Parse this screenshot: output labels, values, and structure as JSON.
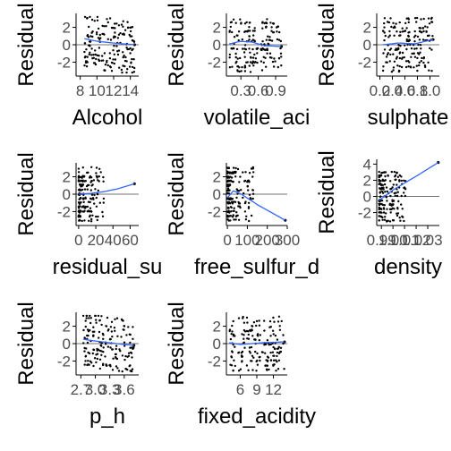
{
  "chart_data": [
    {
      "type": "scatter",
      "title": "",
      "xlabel": "Alcohol",
      "ylabel": "Residual",
      "xlim": [
        7.5,
        15
      ],
      "ylim": [
        -3.6,
        3.6
      ],
      "xticks": [
        8,
        10,
        12,
        14
      ],
      "xtick_labels": [
        "8",
        "10",
        "12",
        "14"
      ],
      "yticks": [
        -2,
        0,
        2
      ],
      "ytick_labels": [
        "-2",
        "0",
        "2"
      ],
      "points_summary": "many points in diagonal bands, y from -3.2 to 3.0, x from 8.5 to 14.5",
      "smooth_line": {
        "x": [
          8.5,
          10,
          12,
          14.5
        ],
        "y": [
          0.7,
          0.4,
          0.2,
          0.0
        ]
      }
    },
    {
      "type": "scatter",
      "title": "",
      "xlabel": "volatile_aci",
      "ylabel": "Residual",
      "xlim": [
        0.05,
        1.1
      ],
      "ylim": [
        -3.6,
        3.6
      ],
      "xticks": [
        0.3,
        0.6,
        0.9
      ],
      "xtick_labels": [
        "0.3",
        "0.6",
        "0.9"
      ],
      "yticks": [
        -2,
        0,
        2
      ],
      "ytick_labels": [
        "-2",
        "0",
        "2"
      ],
      "points_summary": "dense cloud at x 0.1-0.6, sparse to 1.0",
      "smooth_line": {
        "x": [
          0.1,
          0.3,
          0.5,
          0.7,
          1.0
        ],
        "y": [
          0.1,
          0.4,
          0.3,
          -0.1,
          -0.2
        ]
      }
    },
    {
      "type": "scatter",
      "title": "",
      "xlabel": "sulphate",
      "ylabel": "Residual",
      "xlim": [
        0.15,
        1.15
      ],
      "ylim": [
        -3.6,
        3.6
      ],
      "xticks": [
        0.2,
        0.4,
        0.6,
        0.8,
        1.0
      ],
      "xtick_labels": [
        "0.2",
        "0.4",
        "0.6",
        "0.8",
        "1.0"
      ],
      "yticks": [
        -2,
        0,
        2
      ],
      "ytick_labels": [
        "-2",
        "0",
        "2"
      ],
      "points_summary": "horizontal bands across x 0.25-1.05",
      "smooth_line": {
        "x": [
          0.25,
          0.5,
          0.75,
          1.05
        ],
        "y": [
          0.0,
          0.2,
          0.1,
          0.6
        ]
      }
    },
    {
      "type": "scatter",
      "title": "",
      "xlabel": "residual_su",
      "ylabel": "Residual",
      "xlim": [
        -3,
        70
      ],
      "ylim": [
        -3.6,
        3.6
      ],
      "xticks": [
        0,
        20,
        40,
        60
      ],
      "xtick_labels": [
        "0",
        "20",
        "40",
        "60"
      ],
      "yticks": [
        -2,
        0,
        2
      ],
      "ytick_labels": [
        "-2",
        "0",
        "2"
      ],
      "points_summary": "dense at x 0-20, single point near x 65",
      "smooth_line": {
        "x": [
          0,
          15,
          30,
          45,
          65
        ],
        "y": [
          0.0,
          0.1,
          0.3,
          0.6,
          1.2
        ]
      }
    },
    {
      "type": "scatter",
      "title": "",
      "xlabel": "free_sulfur_d",
      "ylabel": "Residual",
      "xlim": [
        -5,
        300
      ],
      "ylim": [
        -3.6,
        3.6
      ],
      "xticks": [
        0,
        100,
        200,
        300
      ],
      "xtick_labels": [
        "0",
        "100",
        "200",
        "300"
      ],
      "yticks": [
        -2,
        0,
        2
      ],
      "ytick_labels": [
        "-2",
        "0",
        "2"
      ],
      "points_summary": "dense at x 0-80",
      "smooth_line": {
        "x": [
          0,
          30,
          70,
          150,
          290
        ],
        "y": [
          -0.4,
          0.4,
          0.0,
          -1.2,
          -3.0
        ]
      }
    },
    {
      "type": "scatter",
      "title": "",
      "xlabel": "density",
      "ylabel": "Residual",
      "xlim": [
        0.986,
        1.04
      ],
      "ylim": [
        -3.6,
        4.6
      ],
      "xticks": [
        0.99,
        1.0,
        1.01,
        1.02,
        1.03
      ],
      "xtick_labels": [
        "0.99",
        "1.00",
        "1.01",
        "1.02",
        "1.03"
      ],
      "yticks": [
        -2,
        0,
        2,
        4
      ],
      "ytick_labels": [
        "-2",
        "0",
        "2",
        "4"
      ],
      "points_summary": "dense at x 0.99-1.00, single point near x 1.04",
      "smooth_line": {
        "x": [
          0.988,
          1.0,
          1.02,
          1.039
        ],
        "y": [
          -0.5,
          0.8,
          2.5,
          4.2
        ]
      }
    },
    {
      "type": "scatter",
      "title": "",
      "xlabel": "p_h",
      "ylabel": "Residual",
      "xlim": [
        2.6,
        3.9
      ],
      "ylim": [
        -3.6,
        3.6
      ],
      "xticks": [
        2.7,
        3.0,
        3.3,
        3.6
      ],
      "xtick_labels": [
        "2.7",
        "3.0",
        "3.3",
        "3.6"
      ],
      "yticks": [
        -2,
        0,
        2
      ],
      "ytick_labels": [
        "-2",
        "0",
        "2"
      ],
      "points_summary": "diagonal bands across x 2.8-3.8",
      "smooth_line": {
        "x": [
          2.75,
          3.0,
          3.3,
          3.6,
          3.8
        ],
        "y": [
          0.5,
          0.3,
          0.1,
          -0.1,
          -0.2
        ]
      }
    },
    {
      "type": "scatter",
      "title": "",
      "xlabel": "fixed_acidity",
      "ylabel": "Residual",
      "xlim": [
        3.5,
        14.5
      ],
      "ylim": [
        -3.6,
        3.6
      ],
      "xticks": [
        6,
        9,
        12
      ],
      "xtick_labels": [
        "6",
        "9",
        "12"
      ],
      "yticks": [
        -2,
        0,
        2
      ],
      "ytick_labels": [
        "-2",
        "0",
        "2"
      ],
      "points_summary": "bands across x 4-14",
      "smooth_line": {
        "x": [
          4,
          6,
          8,
          10,
          14
        ],
        "y": [
          0.1,
          -0.1,
          0.0,
          0.1,
          0.2
        ]
      }
    }
  ]
}
